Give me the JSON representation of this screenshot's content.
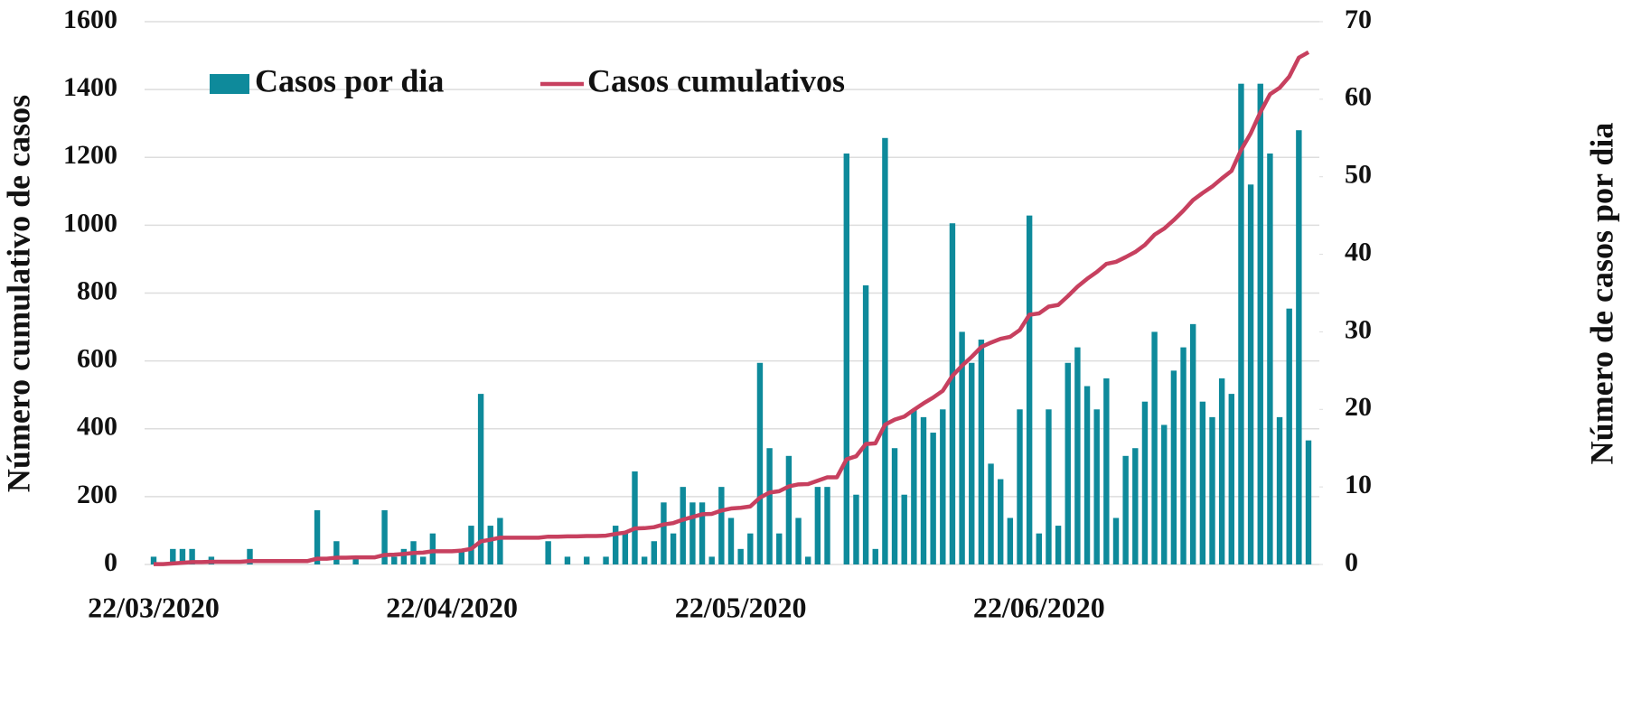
{
  "chart_data": {
    "type": "bar",
    "categories": [
      "22/03/2020",
      null,
      null,
      null,
      null,
      null,
      null,
      null,
      null,
      null,
      null,
      null,
      null,
      null,
      null,
      null,
      null,
      null,
      null,
      null,
      null,
      null,
      null,
      null,
      null,
      null,
      null,
      null,
      null,
      null,
      null,
      "22/04/2020",
      null,
      null,
      null,
      null,
      null,
      null,
      null,
      null,
      null,
      null,
      null,
      null,
      null,
      null,
      null,
      null,
      null,
      null,
      null,
      null,
      null,
      null,
      null,
      null,
      null,
      null,
      null,
      null,
      null,
      "22/05/2020",
      null,
      null,
      null,
      null,
      null,
      null,
      null,
      null,
      null,
      null,
      null,
      null,
      null,
      null,
      null,
      null,
      null,
      null,
      null,
      null,
      null,
      null,
      null,
      null,
      null,
      null,
      null,
      null,
      null,
      null,
      "22/06/2020",
      null,
      null,
      null,
      null,
      null,
      null,
      null,
      null,
      null,
      null,
      null,
      null,
      null,
      null,
      null,
      null,
      null,
      null,
      null,
      null,
      null,
      null,
      null,
      null,
      null,
      null,
      null,
      null
    ],
    "series": [
      {
        "name": "Casos por dia",
        "type": "bar",
        "axis": "y2",
        "color": "#0e8a9b",
        "values": [
          1,
          0,
          2,
          2,
          2,
          0,
          1,
          0,
          0,
          0,
          2,
          0,
          0,
          0,
          0,
          0,
          0,
          7,
          0,
          3,
          0,
          1,
          0,
          0,
          7,
          1,
          2,
          3,
          1,
          4,
          0,
          0,
          2,
          5,
          22,
          5,
          6,
          0,
          0,
          0,
          0,
          3,
          0,
          1,
          0,
          1,
          0,
          1,
          5,
          4,
          12,
          1,
          3,
          8,
          4,
          10,
          8,
          8,
          1,
          10,
          6,
          2,
          4,
          26,
          15,
          4,
          14,
          6,
          1,
          10,
          10,
          0,
          53,
          9,
          36,
          2,
          55,
          15,
          9,
          20,
          19,
          17,
          20,
          44,
          30,
          26,
          29,
          13,
          11,
          6,
          20,
          45,
          4,
          20,
          5,
          26,
          28,
          23,
          20,
          24,
          6,
          14,
          15,
          21,
          30,
          18,
          25,
          28,
          31,
          21,
          19,
          24,
          22,
          62,
          49,
          62,
          53,
          19,
          33,
          56,
          16
        ]
      },
      {
        "name": "Casos cumulativos",
        "type": "line",
        "axis": "y",
        "color": "#c7405f",
        "values": [
          1,
          1,
          3,
          5,
          7,
          7,
          8,
          8,
          8,
          8,
          10,
          10,
          10,
          10,
          10,
          10,
          10,
          17,
          17,
          20,
          20,
          21,
          21,
          21,
          28,
          29,
          31,
          34,
          35,
          39,
          39,
          39,
          41,
          46,
          68,
          73,
          79,
          79,
          79,
          79,
          79,
          82,
          82,
          83,
          83,
          84,
          84,
          85,
          90,
          94,
          106,
          107,
          110,
          118,
          122,
          132,
          140,
          148,
          149,
          159,
          165,
          167,
          171,
          197,
          212,
          216,
          230,
          236,
          237,
          247,
          257,
          257,
          310,
          319,
          355,
          357,
          412,
          427,
          436,
          456,
          475,
          492,
          512,
          556,
          586,
          612,
          641,
          654,
          665,
          671,
          691,
          736,
          740,
          760,
          765,
          791,
          819,
          842,
          862,
          886,
          892,
          906,
          921,
          942,
          972,
          990,
          1015,
          1043,
          1074,
          1095,
          1114,
          1138,
          1160,
          1222,
          1271,
          1333,
          1386,
          1405,
          1438,
          1494,
          1510
        ]
      }
    ],
    "y_label": "Número cumulativo de casos",
    "y2_label": "Número de casos por dia",
    "ylim": [
      0,
      1600
    ],
    "yticks": [
      0,
      200,
      400,
      600,
      800,
      1000,
      1200,
      1400,
      1600
    ],
    "y2lim": [
      0,
      70
    ],
    "y2ticks": [
      0,
      10,
      20,
      30,
      40,
      50,
      60,
      70
    ],
    "grid": true
  }
}
